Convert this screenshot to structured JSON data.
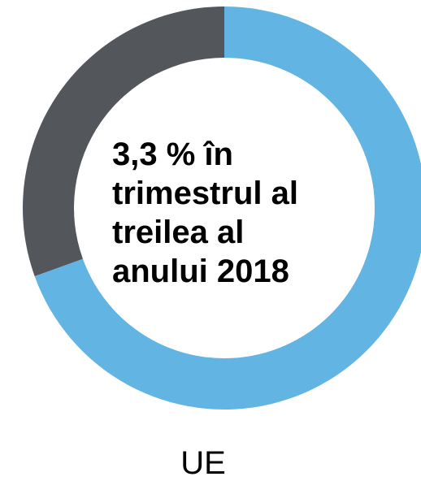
{
  "chart_data": {
    "type": "pie",
    "style": "donut",
    "title": "",
    "center_label": "3,3 % în\ntrimestrul al\ntreilea al\nanului 2018",
    "caption": "UE",
    "slices": [
      {
        "value": 69.5,
        "color": "#62b4e3"
      },
      {
        "value": 30.5,
        "color": "#53565b"
      }
    ],
    "start_angle_deg": 0,
    "direction": "clockwise"
  }
}
